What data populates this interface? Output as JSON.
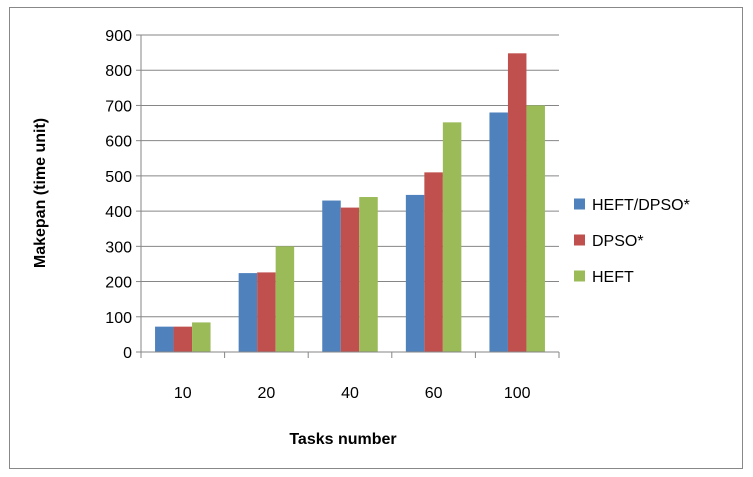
{
  "chart_data": {
    "type": "bar",
    "categories": [
      "10",
      "20",
      "40",
      "60",
      "100"
    ],
    "series": [
      {
        "name": "HEFT/DPSO*",
        "color": "#4F81BD",
        "values": [
          72,
          224,
          430,
          446,
          680
        ]
      },
      {
        "name": "DPSO*",
        "color": "#C0504D",
        "values": [
          72,
          226,
          410,
          510,
          848
        ]
      },
      {
        "name": "HEFT",
        "color": "#9BBB59",
        "values": [
          84,
          300,
          440,
          652,
          700
        ]
      }
    ],
    "xlabel": "Tasks number",
    "ylabel": "Makepan (time unit)",
    "ylim": [
      0,
      900
    ],
    "yticks": [
      "0",
      "100",
      "200",
      "300",
      "400",
      "500",
      "600",
      "700",
      "800",
      "900"
    ],
    "grid": true,
    "legend": "right"
  }
}
